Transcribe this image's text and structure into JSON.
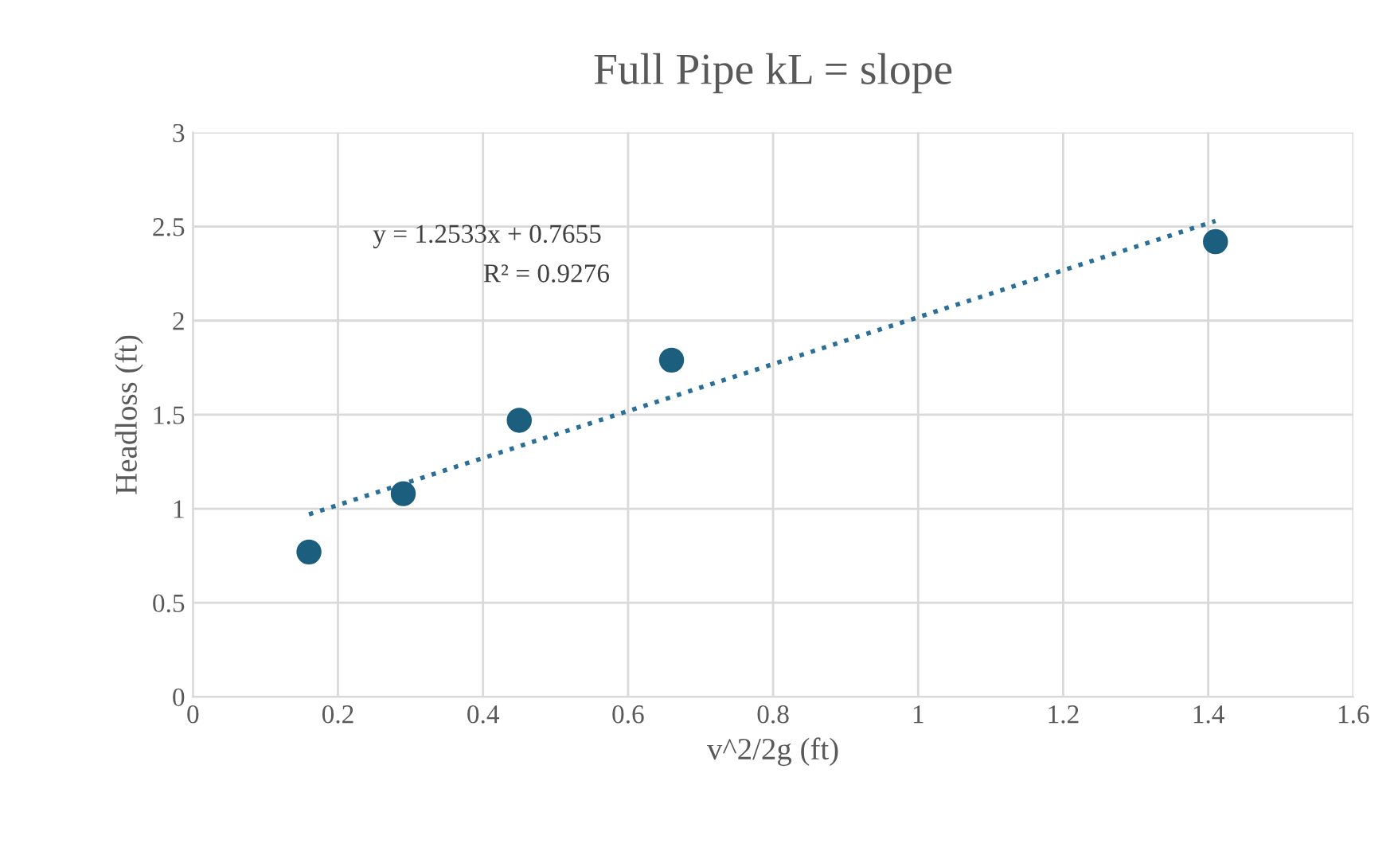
{
  "chart_data": {
    "type": "scatter",
    "title": "Full Pipe kL = slope",
    "xlabel": "v^2/2g (ft)",
    "ylabel": "Headloss (ft)",
    "x": [
      0.16,
      0.29,
      0.45,
      0.66,
      1.41
    ],
    "series": [
      {
        "color": "#1b5e7e",
        "values": [
          0.77,
          1.08,
          1.47,
          1.79,
          2.42
        ],
        "marker": "circle"
      },
      {
        "type": "line",
        "color": "#2a6f97",
        "x": [
          0.16,
          1.41
        ],
        "values": [
          0.97,
          2.53
        ],
        "line_style": "dotted",
        "marker": "none"
      }
    ],
    "annotations": [
      "y = 1.2533x + 0.7655",
      "R² = 0.9276"
    ],
    "xlim": [
      0,
      1.6
    ],
    "xticks": [
      0,
      0.2,
      0.4,
      0.6,
      0.8,
      1,
      1.2,
      1.4,
      1.6
    ],
    "ylim": [
      0,
      3
    ],
    "yticks": [
      0,
      0.5,
      1,
      1.5,
      2,
      2.5,
      3
    ],
    "grid": true,
    "legend": false
  }
}
